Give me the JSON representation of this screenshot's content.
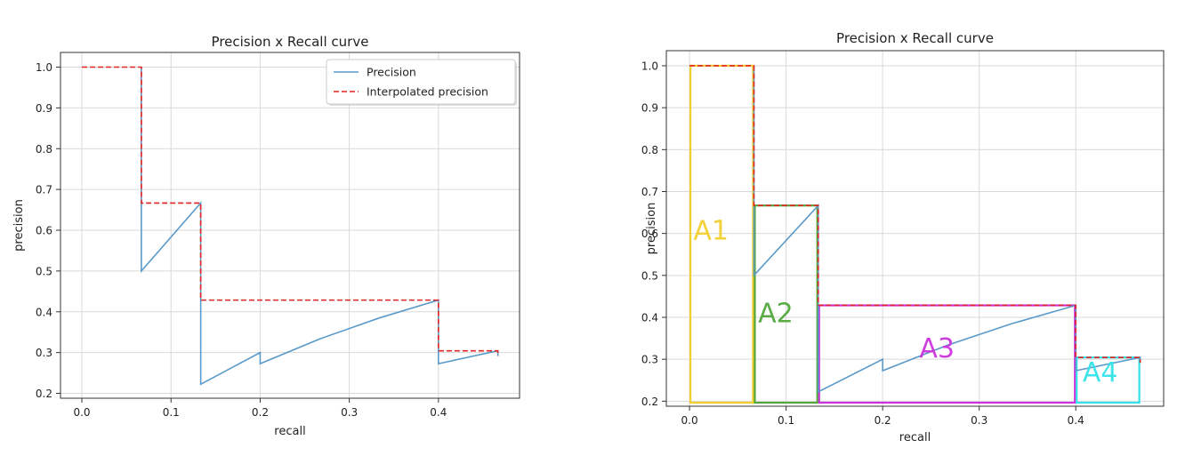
{
  "chart_data": [
    {
      "type": "line",
      "title": "Precision x Recall curve",
      "xlabel": "recall",
      "ylabel": "precision",
      "xlim": [
        -0.024,
        0.491
      ],
      "ylim": [
        0.188,
        1.036
      ],
      "xticks": [
        0.0,
        0.1,
        0.2,
        0.3,
        0.4
      ],
      "xtick_labels": [
        "0.0",
        "0.1",
        "0.2",
        "0.3",
        "0.4"
      ],
      "yticks": [
        0.2,
        0.3,
        0.4,
        0.5,
        0.6,
        0.7,
        0.8,
        0.9,
        1.0
      ],
      "ytick_labels": [
        "0.2",
        "0.3",
        "0.4",
        "0.5",
        "0.6",
        "0.7",
        "0.8",
        "0.9",
        "1.0"
      ],
      "grid": true,
      "legend": "top-right",
      "series": [
        {
          "name": "Precision",
          "color": "#5a9ac9",
          "style": "solid",
          "x": [
            0.0667,
            0.0667,
            0.1333,
            0.1333,
            0.1333,
            0.2,
            0.2,
            0.2667,
            0.3333,
            0.4,
            0.4,
            0.4667,
            0.4667
          ],
          "y": [
            1.0,
            0.5,
            0.6667,
            0.5,
            0.2222,
            0.3,
            0.2727,
            0.3333,
            0.3846,
            0.4286,
            0.2727,
            0.3043,
            0.2917
          ]
        },
        {
          "name": "Interpolated precision",
          "color": "#e02424",
          "style": "dashed",
          "x": [
            0.0,
            0.0667,
            0.0667,
            0.1333,
            0.1333,
            0.4,
            0.4,
            0.4667,
            0.4667
          ],
          "y": [
            1.0,
            1.0,
            0.6667,
            0.6667,
            0.4286,
            0.4286,
            0.3043,
            0.3043,
            0.2917
          ]
        }
      ]
    },
    {
      "type": "line",
      "title": "Precision x Recall curve",
      "xlabel": "recall",
      "ylabel": "precision",
      "xlim": [
        -0.024,
        0.491
      ],
      "ylim": [
        0.188,
        1.036
      ],
      "xticks": [
        0.0,
        0.1,
        0.2,
        0.3,
        0.4
      ],
      "xtick_labels": [
        "0.0",
        "0.1",
        "0.2",
        "0.3",
        "0.4"
      ],
      "yticks": [
        0.2,
        0.3,
        0.4,
        0.5,
        0.6,
        0.7,
        0.8,
        0.9,
        1.0
      ],
      "ytick_labels": [
        "0.2",
        "0.3",
        "0.4",
        "0.5",
        "0.6",
        "0.7",
        "0.8",
        "0.9",
        "1.0"
      ],
      "grid": true,
      "series": [
        {
          "color": "#5a9ac9",
          "style": "solid",
          "x": [
            0.0667,
            0.0667,
            0.1333,
            0.1333,
            0.1333,
            0.2,
            0.2,
            0.2667,
            0.3333,
            0.4,
            0.4,
            0.4667,
            0.4667
          ],
          "y": [
            1.0,
            0.5,
            0.6667,
            0.5,
            0.2222,
            0.3,
            0.2727,
            0.3333,
            0.3846,
            0.4286,
            0.2727,
            0.3043,
            0.2917
          ]
        },
        {
          "color": "#e02424",
          "style": "dashed",
          "x": [
            0.0,
            0.0667,
            0.0667,
            0.1333,
            0.1333,
            0.4,
            0.4,
            0.4667,
            0.4667
          ],
          "y": [
            1.0,
            1.0,
            0.6667,
            0.6667,
            0.4286,
            0.4286,
            0.3043,
            0.3043,
            0.2917
          ]
        }
      ],
      "areas": [
        {
          "label": "A1",
          "color": "#f2cf2c",
          "x0": 0.0,
          "x1": 0.0667,
          "height": 1.0
        },
        {
          "label": "A2",
          "color": "#52a83a",
          "x0": 0.0667,
          "x1": 0.1333,
          "height": 0.6667
        },
        {
          "label": "A3",
          "color": "#cc33dd",
          "x0": 0.1333,
          "x1": 0.4,
          "height": 0.4286
        },
        {
          "label": "A4",
          "color": "#33e3e8",
          "x0": 0.4,
          "x1": 0.4667,
          "height": 0.3043
        }
      ]
    }
  ]
}
